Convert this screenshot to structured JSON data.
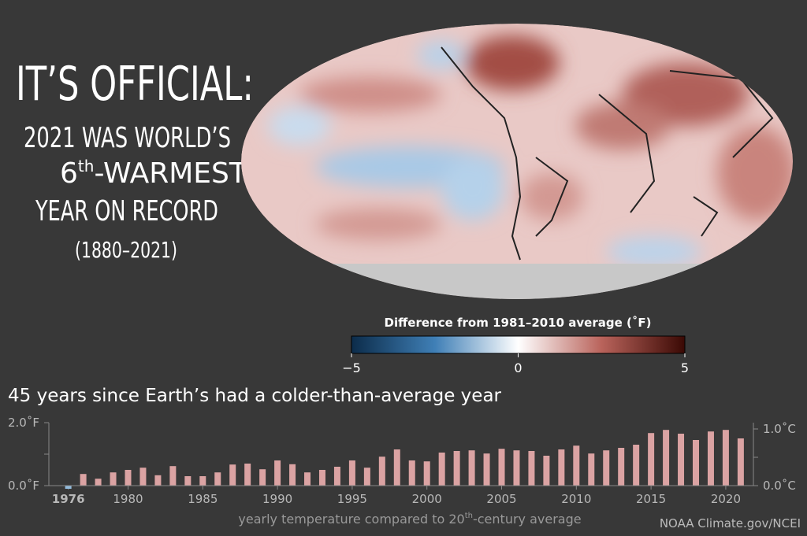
{
  "headline": {
    "title": "IT’S OFFICIAL:",
    "line1": "2021 WAS WORLD’S",
    "line2_rank": "6",
    "line2_sup": "th",
    "line2_rest": "-WARMEST",
    "line3": "YEAR ON RECORD",
    "period": "(1880–2021)"
  },
  "map": {
    "colorbar_title": "Difference from 1981–2010 average (˚F)",
    "colorbar_lim": [
      -5,
      5
    ],
    "colorbar_ticks": [
      {
        "value": -5,
        "label": "−5"
      },
      0,
      5
    ],
    "colorbar_colors": [
      "#0c2c4a",
      "#3f7fb6",
      "#ffffff",
      "#b9635b",
      "#3a0904"
    ]
  },
  "chart_data": {
    "type": "bar",
    "title": "45 years since Earth’s had a colder-than-average year",
    "xlabel_pre": "yearly temperature compared to 20",
    "xlabel_sup": "th",
    "xlabel_post": "-century average",
    "source": "NOAA Climate.gov/NCEI",
    "x": [
      1976,
      1977,
      1978,
      1979,
      1980,
      1981,
      1982,
      1983,
      1984,
      1985,
      1986,
      1987,
      1988,
      1989,
      1990,
      1991,
      1992,
      1993,
      1994,
      1995,
      1996,
      1997,
      1998,
      1999,
      2000,
      2001,
      2002,
      2003,
      2004,
      2005,
      2006,
      2007,
      2008,
      2009,
      2010,
      2011,
      2012,
      2013,
      2014,
      2015,
      2016,
      2017,
      2018,
      2019,
      2020,
      2021
    ],
    "values": [
      -0.1,
      0.37,
      0.22,
      0.42,
      0.5,
      0.57,
      0.33,
      0.62,
      0.3,
      0.3,
      0.42,
      0.67,
      0.7,
      0.52,
      0.8,
      0.68,
      0.42,
      0.5,
      0.6,
      0.8,
      0.57,
      0.92,
      1.15,
      0.8,
      0.77,
      1.05,
      1.1,
      1.12,
      1.02,
      1.17,
      1.12,
      1.1,
      0.95,
      1.15,
      1.27,
      1.02,
      1.12,
      1.2,
      1.3,
      1.67,
      1.77,
      1.65,
      1.45,
      1.72,
      1.77,
      1.5
    ],
    "xlim": [
      1974.7,
      2021.85
    ],
    "xticks": [
      1976,
      1980,
      1985,
      1990,
      1995,
      2000,
      2005,
      2010,
      2015,
      2020
    ],
    "ylim": [
      0,
      2
    ],
    "yticks": [
      {
        "value": 0,
        "label": "0.0˚F"
      },
      {
        "value": 2,
        "label": "2.0˚F"
      }
    ],
    "yminor": [
      1
    ],
    "y2lim": [
      0,
      1.111
    ],
    "y2ticks": [
      {
        "value": 0,
        "label": "0.0˚C"
      },
      {
        "value": 1,
        "label": "1.0˚C"
      }
    ],
    "y2minor": [
      0.5
    ],
    "colors": {
      "positive": "#dba3a3",
      "negative": "#93bcdd"
    }
  }
}
